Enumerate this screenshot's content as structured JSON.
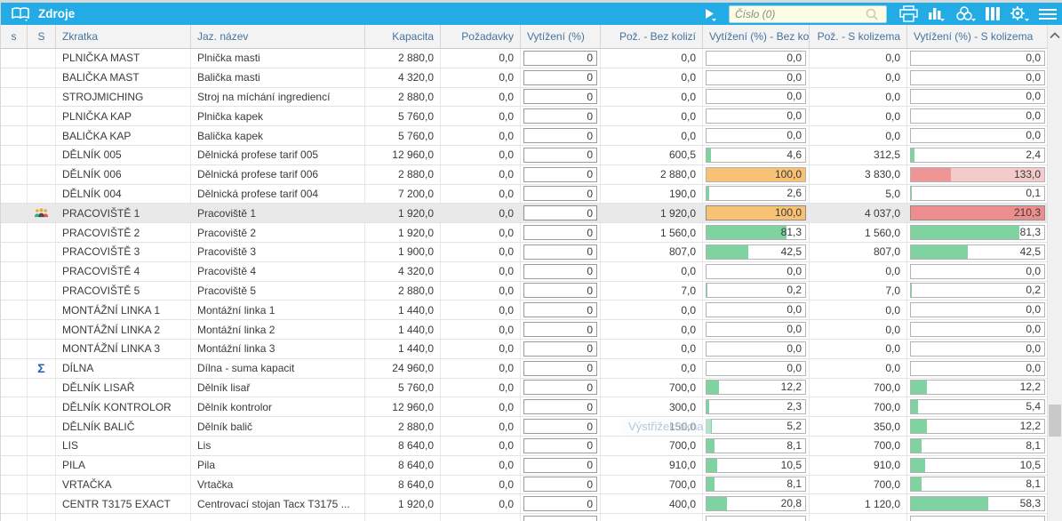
{
  "window": {
    "title": "Zdroje"
  },
  "toolbar": {
    "search_placeholder": "Číslo (0)",
    "icons": [
      "book-icon",
      "play-icon",
      "search-icon",
      "printer-icon",
      "bar-chart-icon",
      "group-icon",
      "columns-icon",
      "settings-icon",
      "menu-icon"
    ]
  },
  "colors": {
    "titlebar": "#22abe4",
    "header_text": "#44739e",
    "bar_green": "#7fd3a1",
    "bar_orange": "#f8c173",
    "bar_red": "#ee8d8d",
    "bar_red_dark": "#f09595",
    "bar_pink": "#f5caca",
    "selected_row": "#e9e9e9"
  },
  "watermark": "Výstřižek okna",
  "table": {
    "columns": [
      {
        "key": "s",
        "label": "s",
        "align": "ctr"
      },
      {
        "key": "S",
        "label": "S",
        "align": "ctr"
      },
      {
        "key": "zkratka",
        "label": "Zkratka",
        "align": "left"
      },
      {
        "key": "nazev",
        "label": "Jaz. název",
        "align": "left"
      },
      {
        "key": "kapacita",
        "label": "Kapacita",
        "align": "num"
      },
      {
        "key": "pozadavky",
        "label": "Požadavky",
        "align": "num"
      },
      {
        "key": "vytizeni",
        "label": "Vytížení (%)",
        "align": "left"
      },
      {
        "key": "poz_bez",
        "label": "Pož. - Bez kolizí",
        "align": "num"
      },
      {
        "key": "vyt_bez",
        "label": "Vytížení (%) - Bez kolizí",
        "align": "left"
      },
      {
        "key": "poz_s",
        "label": "Pož. - S kolizema",
        "align": "num"
      },
      {
        "key": "vyt_s",
        "label": "Vytížení (%) - S kolizema",
        "align": "left"
      }
    ],
    "has_partial_row": true,
    "rows": [
      {
        "icon": null,
        "selected": false,
        "zkratka": "PLNIČKA MAST",
        "nazev": "Plnička masti",
        "kapacita": "2 880,0",
        "pozadavky": "0,0",
        "vytizeni": "0",
        "poz_bez": "0,0",
        "vyt_bez": {
          "text": "0,0",
          "pct": 0,
          "fill": "none"
        },
        "poz_s": "0,0",
        "vyt_s": {
          "text": "0,0",
          "pct": 0,
          "fill": "none"
        }
      },
      {
        "icon": null,
        "selected": false,
        "zkratka": "BALIČKA MAST",
        "nazev": "Balička masti",
        "kapacita": "4 320,0",
        "pozadavky": "0,0",
        "vytizeni": "0",
        "poz_bez": "0,0",
        "vyt_bez": {
          "text": "0,0",
          "pct": 0,
          "fill": "none"
        },
        "poz_s": "0,0",
        "vyt_s": {
          "text": "0,0",
          "pct": 0,
          "fill": "none"
        }
      },
      {
        "icon": null,
        "selected": false,
        "zkratka": "STROJMICHING",
        "nazev": "Stroj na míchání ingrediencí",
        "kapacita": "2 880,0",
        "pozadavky": "0,0",
        "vytizeni": "0",
        "poz_bez": "0,0",
        "vyt_bez": {
          "text": "0,0",
          "pct": 0,
          "fill": "none"
        },
        "poz_s": "0,0",
        "vyt_s": {
          "text": "0,0",
          "pct": 0,
          "fill": "none"
        }
      },
      {
        "icon": null,
        "selected": false,
        "zkratka": "PLNIČKA KAP",
        "nazev": "Plnička kapek",
        "kapacita": "5 760,0",
        "pozadavky": "0,0",
        "vytizeni": "0",
        "poz_bez": "0,0",
        "vyt_bez": {
          "text": "0,0",
          "pct": 0,
          "fill": "none"
        },
        "poz_s": "0,0",
        "vyt_s": {
          "text": "0,0",
          "pct": 0,
          "fill": "none"
        }
      },
      {
        "icon": null,
        "selected": false,
        "zkratka": "BALIČKA KAP",
        "nazev": "Balička kapek",
        "kapacita": "5 760,0",
        "pozadavky": "0,0",
        "vytizeni": "0",
        "poz_bez": "0,0",
        "vyt_bez": {
          "text": "0,0",
          "pct": 0,
          "fill": "none"
        },
        "poz_s": "0,0",
        "vyt_s": {
          "text": "0,0",
          "pct": 0,
          "fill": "none"
        }
      },
      {
        "icon": null,
        "selected": false,
        "zkratka": "DĚLNÍK 005",
        "nazev": "Dělnická profese tarif 005",
        "kapacita": "12 960,0",
        "pozadavky": "0,0",
        "vytizeni": "0",
        "poz_bez": "600,5",
        "vyt_bez": {
          "text": "4,6",
          "pct": 4.6,
          "fill": "green"
        },
        "poz_s": "312,5",
        "vyt_s": {
          "text": "2,4",
          "pct": 2.4,
          "fill": "green"
        }
      },
      {
        "icon": null,
        "selected": false,
        "zkratka": "DĚLNÍK 006",
        "nazev": "Dělnická profese tarif 006",
        "kapacita": "2 880,0",
        "pozadavky": "0,0",
        "vytizeni": "0",
        "poz_bez": "2 880,0",
        "vyt_bez": {
          "text": "100,0",
          "pct": 100,
          "fill": "orange"
        },
        "poz_s": "3 830,0",
        "vyt_s": {
          "text": "133,0",
          "pct": 100,
          "fill": "red-over",
          "inner_pct": 30
        }
      },
      {
        "icon": null,
        "selected": false,
        "zkratka": "DĚLNÍK 004",
        "nazev": "Dělnická profese tarif 004",
        "kapacita": "7 200,0",
        "pozadavky": "0,0",
        "vytizeni": "0",
        "poz_bez": "190,0",
        "vyt_bez": {
          "text": "2,6",
          "pct": 2.6,
          "fill": "green"
        },
        "poz_s": "5,0",
        "vyt_s": {
          "text": "0,1",
          "pct": 0.1,
          "fill": "green"
        }
      },
      {
        "icon": "people",
        "selected": true,
        "zkratka": "PRACOVIŠTĚ 1",
        "nazev": "Pracoviště 1",
        "kapacita": "1 920,0",
        "pozadavky": "0,0",
        "vytizeni": "0",
        "poz_bez": "1 920,0",
        "vyt_bez": {
          "text": "100,0",
          "pct": 100,
          "fill": "orange"
        },
        "poz_s": "4 037,0",
        "vyt_s": {
          "text": "210,3",
          "pct": 100,
          "fill": "red"
        }
      },
      {
        "icon": null,
        "selected": false,
        "zkratka": "PRACOVIŠTĚ 2",
        "nazev": "Pracoviště 2",
        "kapacita": "1 920,0",
        "pozadavky": "0,0",
        "vytizeni": "0",
        "poz_bez": "1 560,0",
        "vyt_bez": {
          "text": "81,3",
          "pct": 81.3,
          "fill": "green"
        },
        "poz_s": "1 560,0",
        "vyt_s": {
          "text": "81,3",
          "pct": 81.3,
          "fill": "green"
        }
      },
      {
        "icon": null,
        "selected": false,
        "zkratka": "PRACOVIŠTĚ 3",
        "nazev": "Pracoviště 3",
        "kapacita": "1 900,0",
        "pozadavky": "0,0",
        "vytizeni": "0",
        "poz_bez": "807,0",
        "vyt_bez": {
          "text": "42,5",
          "pct": 42.5,
          "fill": "green"
        },
        "poz_s": "807,0",
        "vyt_s": {
          "text": "42,5",
          "pct": 42.5,
          "fill": "green"
        }
      },
      {
        "icon": null,
        "selected": false,
        "zkratka": "PRACOVIŠTĚ 4",
        "nazev": "Pracoviště 4",
        "kapacita": "4 320,0",
        "pozadavky": "0,0",
        "vytizeni": "0",
        "poz_bez": "0,0",
        "vyt_bez": {
          "text": "0,0",
          "pct": 0,
          "fill": "none"
        },
        "poz_s": "0,0",
        "vyt_s": {
          "text": "0,0",
          "pct": 0,
          "fill": "none"
        }
      },
      {
        "icon": null,
        "selected": false,
        "zkratka": "PRACOVIŠTĚ 5",
        "nazev": "Pracoviště 5",
        "kapacita": "2 880,0",
        "pozadavky": "0,0",
        "vytizeni": "0",
        "poz_bez": "7,0",
        "vyt_bez": {
          "text": "0,2",
          "pct": 0.2,
          "fill": "green"
        },
        "poz_s": "7,0",
        "vyt_s": {
          "text": "0,2",
          "pct": 0.2,
          "fill": "green"
        }
      },
      {
        "icon": null,
        "selected": false,
        "zkratka": "MONTÁŽNÍ LINKA 1",
        "nazev": "Montážní linka 1",
        "kapacita": "1 440,0",
        "pozadavky": "0,0",
        "vytizeni": "0",
        "poz_bez": "0,0",
        "vyt_bez": {
          "text": "0,0",
          "pct": 0,
          "fill": "none"
        },
        "poz_s": "0,0",
        "vyt_s": {
          "text": "0,0",
          "pct": 0,
          "fill": "none"
        }
      },
      {
        "icon": null,
        "selected": false,
        "zkratka": "MONTÁŽNÍ LINKA 2",
        "nazev": "Montážní linka 2",
        "kapacita": "1 440,0",
        "pozadavky": "0,0",
        "vytizeni": "0",
        "poz_bez": "0,0",
        "vyt_bez": {
          "text": "0,0",
          "pct": 0,
          "fill": "none"
        },
        "poz_s": "0,0",
        "vyt_s": {
          "text": "0,0",
          "pct": 0,
          "fill": "none"
        }
      },
      {
        "icon": null,
        "selected": false,
        "zkratka": "MONTÁŽNÍ LINKA 3",
        "nazev": "Montážní linka 3",
        "kapacita": "1 440,0",
        "pozadavky": "0,0",
        "vytizeni": "0",
        "poz_bez": "0,0",
        "vyt_bez": {
          "text": "0,0",
          "pct": 0,
          "fill": "none"
        },
        "poz_s": "0,0",
        "vyt_s": {
          "text": "0,0",
          "pct": 0,
          "fill": "none"
        }
      },
      {
        "icon": "sigma",
        "selected": false,
        "zkratka": "DÍLNA",
        "nazev": "Dílna - suma kapacit",
        "kapacita": "24 960,0",
        "pozadavky": "0,0",
        "vytizeni": "0",
        "poz_bez": "0,0",
        "vyt_bez": {
          "text": "0,0",
          "pct": 0,
          "fill": "none"
        },
        "poz_s": "0,0",
        "vyt_s": {
          "text": "0,0",
          "pct": 0,
          "fill": "none"
        }
      },
      {
        "icon": null,
        "selected": false,
        "zkratka": "DĚLNÍK LISAŘ",
        "nazev": "Dělník lisař",
        "kapacita": "5 760,0",
        "pozadavky": "0,0",
        "vytizeni": "0",
        "poz_bez": "700,0",
        "vyt_bez": {
          "text": "12,2",
          "pct": 12.2,
          "fill": "green"
        },
        "poz_s": "700,0",
        "vyt_s": {
          "text": "12,2",
          "pct": 12.2,
          "fill": "green"
        }
      },
      {
        "icon": null,
        "selected": false,
        "zkratka": "DĚLNÍK KONTROLOR",
        "nazev": "Dělník kontrolor",
        "kapacita": "12 960,0",
        "pozadavky": "0,0",
        "vytizeni": "0",
        "poz_bez": "300,0",
        "vyt_bez": {
          "text": "2,3",
          "pct": 2.3,
          "fill": "green"
        },
        "poz_s": "700,0",
        "vyt_s": {
          "text": "5,4",
          "pct": 5.4,
          "fill": "green"
        }
      },
      {
        "icon": null,
        "selected": false,
        "zkratka": "DĚLNÍK BALIČ",
        "nazev": "Dělník balič",
        "kapacita": "2 880,0",
        "pozadavky": "0,0",
        "vytizeni": "0",
        "poz_bez": "150,0",
        "vyt_bez": {
          "text": "5,2",
          "pct": 5.2,
          "fill": "green"
        },
        "poz_s": "350,0",
        "vyt_s": {
          "text": "12,2",
          "pct": 12.2,
          "fill": "green"
        }
      },
      {
        "icon": null,
        "selected": false,
        "zkratka": "LIS",
        "nazev": "Lis",
        "kapacita": "8 640,0",
        "pozadavky": "0,0",
        "vytizeni": "0",
        "poz_bez": "700,0",
        "vyt_bez": {
          "text": "8,1",
          "pct": 8.1,
          "fill": "green"
        },
        "poz_s": "700,0",
        "vyt_s": {
          "text": "8,1",
          "pct": 8.1,
          "fill": "green"
        }
      },
      {
        "icon": null,
        "selected": false,
        "zkratka": "PILA",
        "nazev": "Pila",
        "kapacita": "8 640,0",
        "pozadavky": "0,0",
        "vytizeni": "0",
        "poz_bez": "910,0",
        "vyt_bez": {
          "text": "10,5",
          "pct": 10.5,
          "fill": "green"
        },
        "poz_s": "910,0",
        "vyt_s": {
          "text": "10,5",
          "pct": 10.5,
          "fill": "green"
        }
      },
      {
        "icon": null,
        "selected": false,
        "zkratka": "VRTAČKA",
        "nazev": "Vrtačka",
        "kapacita": "8 640,0",
        "pozadavky": "0,0",
        "vytizeni": "0",
        "poz_bez": "700,0",
        "vyt_bez": {
          "text": "8,1",
          "pct": 8.1,
          "fill": "green"
        },
        "poz_s": "700,0",
        "vyt_s": {
          "text": "8,1",
          "pct": 8.1,
          "fill": "green"
        }
      },
      {
        "icon": null,
        "selected": false,
        "zkratka": "CENTR T3175 EXACT",
        "nazev": "Centrovací stojan Tacx T3175 ...",
        "kapacita": "1 920,0",
        "pozadavky": "0,0",
        "vytizeni": "0",
        "poz_bez": "400,0",
        "vyt_bez": {
          "text": "20,8",
          "pct": 20.8,
          "fill": "green"
        },
        "poz_s": "1 120,0",
        "vyt_s": {
          "text": "58,3",
          "pct": 58.3,
          "fill": "green"
        }
      }
    ]
  }
}
